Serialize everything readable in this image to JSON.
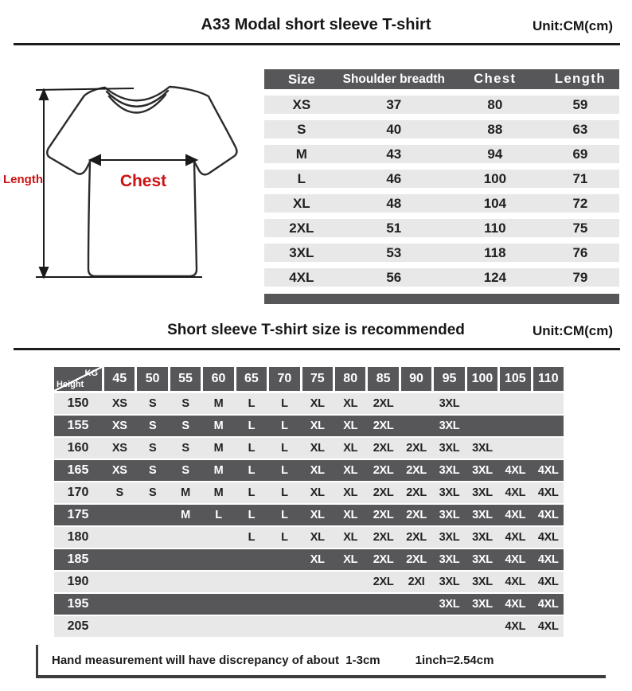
{
  "colors": {
    "dark": "#57575a",
    "light_row": "#e8e8e8",
    "red": "#cc1212",
    "line": "#1c1c1c"
  },
  "header": {
    "title": "A33 Modal short sleeve T-shirt",
    "unit": "Unit:CM(cm)"
  },
  "diagram": {
    "length_label": "Length",
    "chest_label": "Chest"
  },
  "size_table": {
    "columns": [
      "Size",
      "Shoulder breadth",
      "Chest",
      "Length"
    ],
    "rows": [
      [
        "XS",
        "37",
        "80",
        "59"
      ],
      [
        "S",
        "40",
        "88",
        "63"
      ],
      [
        "M",
        "43",
        "94",
        "69"
      ],
      [
        "L",
        "46",
        "100",
        "71"
      ],
      [
        "XL",
        "48",
        "104",
        "72"
      ],
      [
        "2XL",
        "51",
        "110",
        "75"
      ],
      [
        "3XL",
        "53",
        "118",
        "76"
      ],
      [
        "4XL",
        "56",
        "124",
        "79"
      ]
    ]
  },
  "recommend": {
    "title": "Short sleeve T-shirt size is recommended",
    "unit": "Unit:CM(cm)"
  },
  "matrix": {
    "corner_top": "KG",
    "corner_bottom": "Height",
    "weights": [
      "45",
      "50",
      "55",
      "60",
      "65",
      "70",
      "75",
      "80",
      "85",
      "90",
      "95",
      "100",
      "105",
      "110"
    ],
    "rows": [
      {
        "height": "150",
        "cells": [
          "XS",
          "S",
          "S",
          "M",
          "L",
          "L",
          "XL",
          "XL",
          "2XL",
          "",
          "3XL",
          "",
          "",
          ""
        ]
      },
      {
        "height": "155",
        "cells": [
          "XS",
          "S",
          "S",
          "M",
          "L",
          "L",
          "XL",
          "XL",
          "2XL",
          "",
          "3XL",
          "",
          "",
          ""
        ]
      },
      {
        "height": "160",
        "cells": [
          "XS",
          "S",
          "S",
          "M",
          "L",
          "L",
          "XL",
          "XL",
          "2XL",
          "2XL",
          "3XL",
          "3XL",
          "",
          ""
        ]
      },
      {
        "height": "165",
        "cells": [
          "XS",
          "S",
          "S",
          "M",
          "L",
          "L",
          "XL",
          "XL",
          "2XL",
          "2XL",
          "3XL",
          "3XL",
          "4XL",
          "4XL"
        ]
      },
      {
        "height": "170",
        "cells": [
          "S",
          "S",
          "M",
          "M",
          "L",
          "L",
          "XL",
          "XL",
          "2XL",
          "2XL",
          "3XL",
          "3XL",
          "4XL",
          "4XL"
        ]
      },
      {
        "height": "175",
        "cells": [
          "",
          "",
          "M",
          "L",
          "L",
          "L",
          "XL",
          "XL",
          "2XL",
          "2XL",
          "3XL",
          "3XL",
          "4XL",
          "4XL"
        ]
      },
      {
        "height": "180",
        "cells": [
          "",
          "",
          "",
          "",
          "L",
          "L",
          "XL",
          "XL",
          "2XL",
          "2XL",
          "3XL",
          "3XL",
          "4XL",
          "4XL"
        ]
      },
      {
        "height": "185",
        "cells": [
          "",
          "",
          "",
          "",
          "",
          "",
          "XL",
          "XL",
          "2XL",
          "2XL",
          "3XL",
          "3XL",
          "4XL",
          "4XL"
        ]
      },
      {
        "height": "190",
        "cells": [
          "",
          "",
          "",
          "",
          "",
          "",
          "",
          "",
          "2XL",
          "2XI",
          "3XL",
          "3XL",
          "4XL",
          "4XL"
        ]
      },
      {
        "height": "195",
        "cells": [
          "",
          "",
          "",
          "",
          "",
          "",
          "",
          "",
          "",
          "",
          "3XL",
          "3XL",
          "4XL",
          "4XL"
        ]
      },
      {
        "height": "205",
        "cells": [
          "",
          "",
          "",
          "",
          "",
          "",
          "",
          "",
          "",
          "",
          "",
          "",
          "4XL",
          "4XL"
        ]
      }
    ]
  },
  "footer": {
    "note": "Hand measurement will have discrepancy of about  1-3cm",
    "inch": "1inch=2.54cm"
  }
}
